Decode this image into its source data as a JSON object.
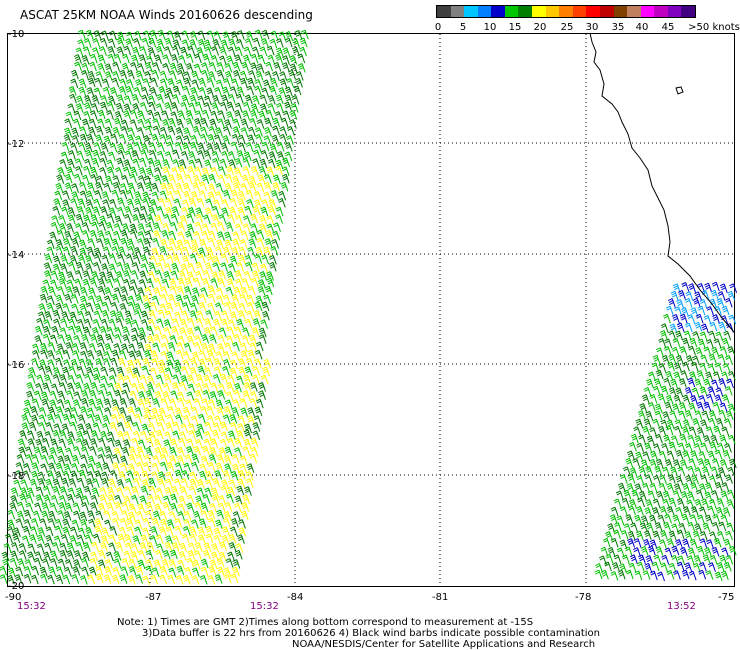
{
  "title": "ASCAT 25KM NOAA Winds 20160626 descending",
  "legend": {
    "colors": [
      "#404040",
      "#808080",
      "#00c8ff",
      "#0080ff",
      "#0000c8",
      "#00c800",
      "#008000",
      "#ffff00",
      "#ffc800",
      "#ff8000",
      "#ff4000",
      "#ff0000",
      "#c00000",
      "#804000",
      "#c08060",
      "#ff00ff",
      "#c000c0",
      "#8000c0",
      "#400080"
    ],
    "labels": [
      "0",
      "5",
      "10",
      "15",
      "20",
      "25",
      "30",
      "35",
      "40",
      "45",
      ">50 knots"
    ]
  },
  "map": {
    "lat_labels": [
      "-10",
      "-12",
      "-14",
      "-16",
      "-18",
      "-20"
    ],
    "lon_labels": [
      "-90",
      "-87",
      "-84",
      "-81",
      "-78",
      "-75"
    ],
    "pass_times": [
      "15:32",
      "15:32",
      "13:52"
    ],
    "colors": {
      "green_dark": "#007800",
      "green": "#00c000",
      "yellow": "#ffff00",
      "blue": "#0000c8",
      "lightblue": "#00a0ff",
      "coast": "#000000",
      "grid": "#000000",
      "time": "#800080"
    }
  },
  "footnotes": {
    "line1": "Note: 1) Times are GMT 2)Times along bottom correspond to measurement at -15S",
    "line2": "3)Data buffer is 22 hrs from 20160626 4) Black wind barbs indicate possible contamination",
    "line3": "NOAA/NESDIS/Center for Satellite Applications and Research"
  }
}
